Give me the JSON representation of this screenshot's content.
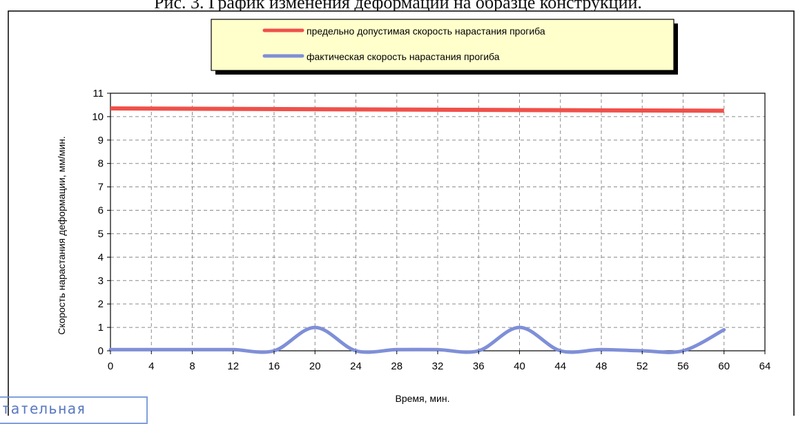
{
  "page": {
    "title": "Рис. 3. График изменения деформации на образце конструкции."
  },
  "stamp": {
    "text": "тательная"
  },
  "colors": {
    "limit_series": "#f0504a",
    "actual_series": "#7f8fd8",
    "legend_bg": "#ffffcc",
    "grid": "#8a8a8a",
    "stamp": "#3f63b8"
  },
  "chart_data": {
    "type": "line",
    "title": "",
    "xlabel": "Время, мин.",
    "ylabel": "Скорость нарастания деформации,  мм/мин.",
    "xlim": [
      0,
      64
    ],
    "ylim": [
      0,
      11
    ],
    "xticks": [
      0,
      4,
      8,
      12,
      16,
      20,
      24,
      28,
      32,
      36,
      40,
      44,
      48,
      52,
      56,
      60,
      64
    ],
    "yticks": [
      0,
      1,
      2,
      3,
      4,
      5,
      6,
      7,
      8,
      9,
      10,
      11
    ],
    "grid": true,
    "legend_position": "top",
    "series": [
      {
        "name": "предельно допустимая скорость нарастания прогиба",
        "color": "#f0504a",
        "x": [
          0,
          60
        ],
        "y": [
          10.35,
          10.25
        ]
      },
      {
        "name": "фактическая скорость нарастания прогиба",
        "color": "#7f8fd8",
        "x": [
          0,
          4,
          8,
          12,
          16,
          20,
          24,
          28,
          32,
          36,
          40,
          44,
          48,
          52,
          56,
          60
        ],
        "y": [
          0.05,
          0.05,
          0.05,
          0.05,
          0.0,
          1.0,
          0.0,
          0.05,
          0.05,
          0.0,
          1.0,
          0.0,
          0.05,
          0.0,
          0.0,
          0.9
        ]
      }
    ]
  }
}
